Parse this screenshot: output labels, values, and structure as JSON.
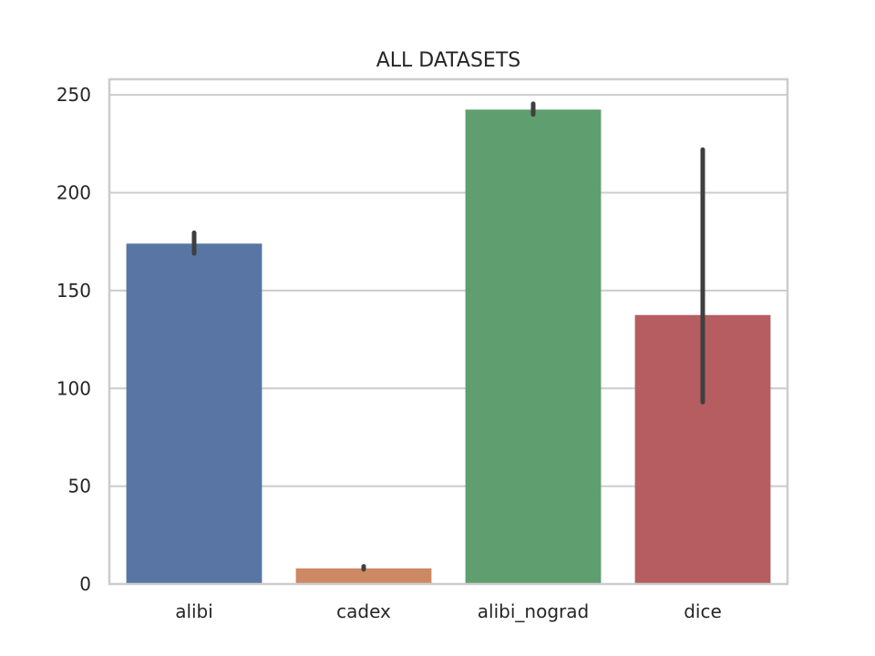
{
  "chart_data": {
    "type": "bar",
    "title": "ALL DATASETS",
    "xlabel": "",
    "ylabel": "",
    "categories": [
      "alibi",
      "cadex",
      "alibi_nograd",
      "dice"
    ],
    "values": [
      174,
      8,
      242.5,
      137.5
    ],
    "error_low": [
      169,
      7.5,
      240,
      93
    ],
    "error_high": [
      179.5,
      9,
      245.5,
      222
    ],
    "colors": [
      "#5875a4",
      "#cc8963",
      "#5f9e6e",
      "#b55d60"
    ],
    "error_color": "#3f3f3f",
    "ylim": [
      0,
      258
    ],
    "yticks": [
      0,
      50,
      100,
      150,
      200,
      250
    ],
    "ytick_labels": [
      "0",
      "50",
      "100",
      "150",
      "200",
      "250"
    ],
    "grid": true,
    "grid_axis": "y",
    "legend": "none"
  }
}
